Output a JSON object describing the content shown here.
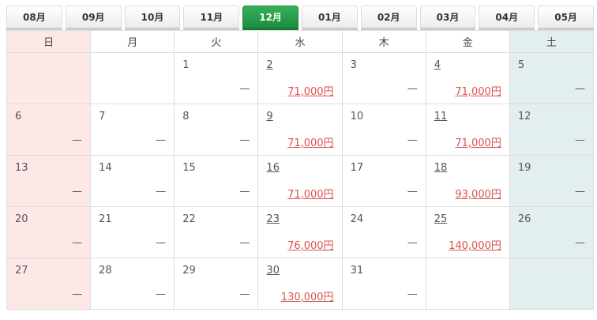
{
  "tabs": [
    "08月",
    "09月",
    "10月",
    "11月",
    "12月",
    "01月",
    "02月",
    "03月",
    "04月",
    "05月"
  ],
  "active_tab": "12月",
  "weekdays": [
    "日",
    "月",
    "火",
    "水",
    "木",
    "金",
    "土"
  ],
  "empty_mark": "—",
  "weeks": [
    [
      null,
      null,
      {
        "d": "1"
      },
      {
        "d": "2",
        "amount": "71,000円"
      },
      {
        "d": "3"
      },
      {
        "d": "4",
        "amount": "71,000円"
      },
      {
        "d": "5"
      }
    ],
    [
      {
        "d": "6"
      },
      {
        "d": "7"
      },
      {
        "d": "8"
      },
      {
        "d": "9",
        "amount": "71,000円"
      },
      {
        "d": "10"
      },
      {
        "d": "11",
        "amount": "71,000円"
      },
      {
        "d": "12"
      }
    ],
    [
      {
        "d": "13"
      },
      {
        "d": "14"
      },
      {
        "d": "15"
      },
      {
        "d": "16",
        "amount": "71,000円"
      },
      {
        "d": "17"
      },
      {
        "d": "18",
        "amount": "93,000円"
      },
      {
        "d": "19"
      }
    ],
    [
      {
        "d": "20"
      },
      {
        "d": "21"
      },
      {
        "d": "22"
      },
      {
        "d": "23",
        "amount": "76,000円"
      },
      {
        "d": "24"
      },
      {
        "d": "25",
        "amount": "140,000円"
      },
      {
        "d": "26"
      }
    ],
    [
      {
        "d": "27"
      },
      {
        "d": "28"
      },
      {
        "d": "29"
      },
      {
        "d": "30",
        "amount": "130,000円"
      },
      {
        "d": "31"
      },
      null,
      null
    ]
  ],
  "colors": {
    "active_tab": "#23964a",
    "sunday_bg": "#fde8e8",
    "saturday_bg": "#e2efee",
    "amount": "#d9534f"
  }
}
